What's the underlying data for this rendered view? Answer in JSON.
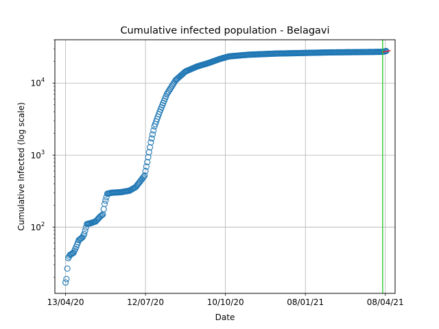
{
  "chart_data": {
    "type": "scatter",
    "title": "Cumulative infected population - Belagavi",
    "xlabel": "Date",
    "ylabel": "Cumulative Infected (log scale)",
    "y_scale": "log",
    "ylim": [
      12,
      40000
    ],
    "xlim": [
      "2020-04-01",
      "2021-04-19"
    ],
    "grid": true,
    "x_ticks": [
      {
        "date": "2020-04-13",
        "label": "13/04/20"
      },
      {
        "date": "2020-07-12",
        "label": "12/07/20"
      },
      {
        "date": "2020-10-10",
        "label": "10/10/20"
      },
      {
        "date": "2021-01-08",
        "label": "08/01/21"
      },
      {
        "date": "2021-04-08",
        "label": "08/04/21"
      }
    ],
    "y_ticks": [
      {
        "value": 100,
        "label": "10",
        "sup": "2"
      },
      {
        "value": 1000,
        "label": "10",
        "sup": "3"
      },
      {
        "value": 10000,
        "label": "10",
        "sup": "4"
      }
    ],
    "marker_color": "#1f77b4",
    "vline": {
      "date": "2021-04-05",
      "color": "#2ecc2e"
    },
    "fit_line": {
      "color": "#e8262a",
      "points": [
        {
          "x": "2021-04-05",
          "y": 27000
        },
        {
          "x": "2021-04-14",
          "y": 28300
        }
      ]
    },
    "anchors": [
      {
        "x": "2020-04-13",
        "y": 17
      },
      {
        "x": "2020-04-14",
        "y": 19
      },
      {
        "x": "2020-04-16",
        "y": 37
      },
      {
        "x": "2020-04-18",
        "y": 41
      },
      {
        "x": "2020-04-22",
        "y": 44
      },
      {
        "x": "2020-04-25",
        "y": 53
      },
      {
        "x": "2020-04-28",
        "y": 66
      },
      {
        "x": "2020-05-02",
        "y": 72
      },
      {
        "x": "2020-05-04",
        "y": 80
      },
      {
        "x": "2020-05-07",
        "y": 110
      },
      {
        "x": "2020-05-12",
        "y": 114
      },
      {
        "x": "2020-05-17",
        "y": 120
      },
      {
        "x": "2020-05-22",
        "y": 140
      },
      {
        "x": "2020-05-25",
        "y": 150
      },
      {
        "x": "2020-05-27",
        "y": 210
      },
      {
        "x": "2020-05-30",
        "y": 290
      },
      {
        "x": "2020-06-04",
        "y": 300
      },
      {
        "x": "2020-06-14",
        "y": 305
      },
      {
        "x": "2020-06-24",
        "y": 320
      },
      {
        "x": "2020-07-01",
        "y": 360
      },
      {
        "x": "2020-07-06",
        "y": 430
      },
      {
        "x": "2020-07-11",
        "y": 520
      },
      {
        "x": "2020-07-14",
        "y": 800
      },
      {
        "x": "2020-07-18",
        "y": 1500
      },
      {
        "x": "2020-07-22",
        "y": 2500
      },
      {
        "x": "2020-07-28",
        "y": 4000
      },
      {
        "x": "2020-08-05",
        "y": 7000
      },
      {
        "x": "2020-08-15",
        "y": 11000
      },
      {
        "x": "2020-08-26",
        "y": 14500
      },
      {
        "x": "2020-09-08",
        "y": 17000
      },
      {
        "x": "2020-09-21",
        "y": 19000
      },
      {
        "x": "2020-10-03",
        "y": 21500
      },
      {
        "x": "2020-10-14",
        "y": 23500
      },
      {
        "x": "2020-11-05",
        "y": 24800
      },
      {
        "x": "2020-12-05",
        "y": 25700
      },
      {
        "x": "2021-01-05",
        "y": 26200
      },
      {
        "x": "2021-02-05",
        "y": 26700
      },
      {
        "x": "2021-03-05",
        "y": 26900
      },
      {
        "x": "2021-04-05",
        "y": 27200
      },
      {
        "x": "2021-04-09",
        "y": 27900
      }
    ]
  }
}
